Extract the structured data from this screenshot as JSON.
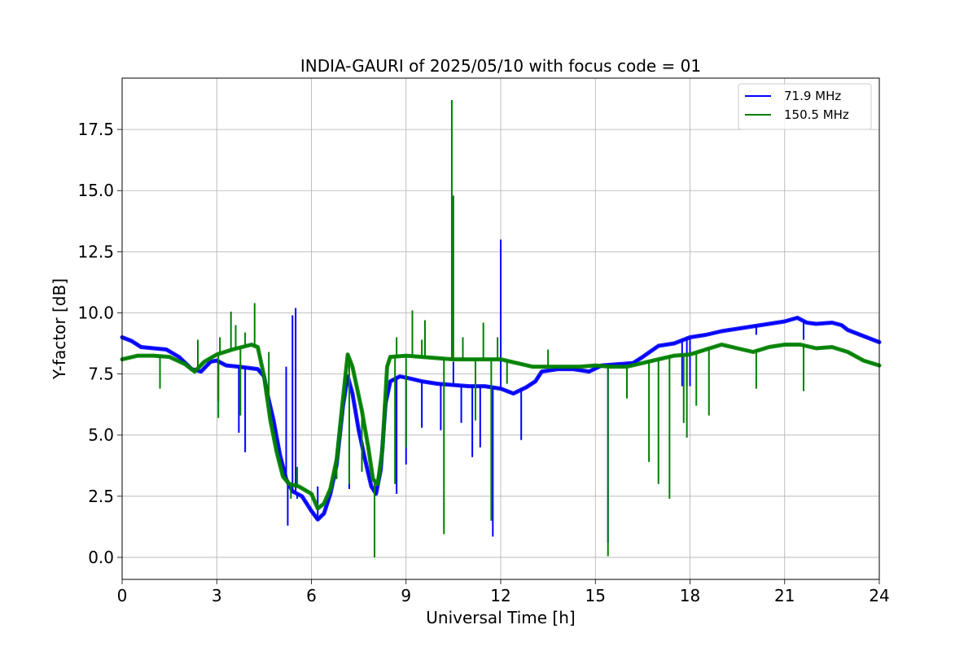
{
  "chart_data": {
    "type": "line",
    "title": "INDIA-GAURI of 2025/05/10 with focus code = 01",
    "xlabel": "Universal Time [h]",
    "ylabel": "Y-factor [dB]",
    "xlim": [
      0,
      24
    ],
    "ylim": [
      -0.9,
      19.6
    ],
    "xticks": [
      0,
      3,
      6,
      9,
      12,
      15,
      18,
      21,
      24
    ],
    "xtick_labels": [
      "0",
      "3",
      "6",
      "9",
      "12",
      "15",
      "18",
      "21",
      "24"
    ],
    "yticks": [
      0.0,
      2.5,
      5.0,
      7.5,
      10.0,
      12.5,
      15.0,
      17.5
    ],
    "ytick_labels": [
      "0.0",
      "2.5",
      "5.0",
      "7.5",
      "10.0",
      "12.5",
      "15.0",
      "17.5"
    ],
    "grid": true,
    "legend_position": "top-right",
    "series": [
      {
        "name": " 71.9 MHz",
        "color": "#0000ff",
        "points": [
          [
            0.0,
            9.0
          ],
          [
            0.3,
            8.85
          ],
          [
            0.6,
            8.6
          ],
          [
            1.0,
            8.55
          ],
          [
            1.4,
            8.5
          ],
          [
            1.8,
            8.2
          ],
          [
            2.2,
            7.7
          ],
          [
            2.5,
            7.6
          ],
          [
            2.8,
            8.0
          ],
          [
            3.0,
            8.05
          ],
          [
            3.3,
            7.85
          ],
          [
            3.7,
            7.8
          ],
          [
            4.0,
            7.75
          ],
          [
            4.3,
            7.7
          ],
          [
            4.5,
            7.4
          ],
          [
            4.6,
            6.7
          ],
          [
            4.8,
            5.6
          ],
          [
            5.0,
            4.2
          ],
          [
            5.2,
            3.2
          ],
          [
            5.4,
            2.7
          ],
          [
            5.7,
            2.5
          ],
          [
            6.0,
            1.9
          ],
          [
            6.2,
            1.55
          ],
          [
            6.4,
            1.8
          ],
          [
            6.6,
            2.6
          ],
          [
            6.8,
            3.8
          ],
          [
            7.0,
            6.2
          ],
          [
            7.15,
            7.4
          ],
          [
            7.3,
            6.7
          ],
          [
            7.5,
            5.2
          ],
          [
            7.7,
            4.0
          ],
          [
            7.9,
            2.9
          ],
          [
            8.05,
            2.6
          ],
          [
            8.2,
            3.6
          ],
          [
            8.35,
            6.3
          ],
          [
            8.5,
            7.2
          ],
          [
            8.8,
            7.4
          ],
          [
            9.0,
            7.35
          ],
          [
            9.5,
            7.2
          ],
          [
            10.0,
            7.1
          ],
          [
            10.5,
            7.05
          ],
          [
            11.0,
            7.0
          ],
          [
            11.5,
            7.0
          ],
          [
            12.0,
            6.9
          ],
          [
            12.4,
            6.7
          ],
          [
            12.8,
            6.95
          ],
          [
            13.1,
            7.2
          ],
          [
            13.3,
            7.6
          ],
          [
            13.8,
            7.7
          ],
          [
            14.3,
            7.7
          ],
          [
            14.8,
            7.6
          ],
          [
            15.2,
            7.85
          ],
          [
            15.7,
            7.9
          ],
          [
            16.2,
            7.95
          ],
          [
            16.5,
            8.2
          ],
          [
            17.0,
            8.65
          ],
          [
            17.5,
            8.75
          ],
          [
            18.0,
            9.0
          ],
          [
            18.5,
            9.1
          ],
          [
            19.0,
            9.25
          ],
          [
            19.5,
            9.35
          ],
          [
            20.0,
            9.45
          ],
          [
            20.5,
            9.55
          ],
          [
            21.0,
            9.65
          ],
          [
            21.4,
            9.8
          ],
          [
            21.7,
            9.6
          ],
          [
            22.0,
            9.55
          ],
          [
            22.5,
            9.6
          ],
          [
            22.8,
            9.5
          ],
          [
            23.0,
            9.3
          ],
          [
            23.5,
            9.05
          ],
          [
            24.0,
            8.8
          ]
        ],
        "spikes": [
          [
            3.05,
            6.4
          ],
          [
            3.35,
            7.9
          ],
          [
            3.7,
            5.1
          ],
          [
            3.9,
            4.3
          ],
          [
            5.2,
            7.8
          ],
          [
            5.25,
            1.3
          ],
          [
            5.4,
            9.9
          ],
          [
            5.5,
            10.2
          ],
          [
            5.55,
            2.4
          ],
          [
            6.2,
            2.9
          ],
          [
            7.2,
            2.8
          ],
          [
            7.6,
            3.6
          ],
          [
            8.7,
            2.6
          ],
          [
            9.0,
            3.8
          ],
          [
            9.5,
            5.3
          ],
          [
            10.1,
            5.2
          ],
          [
            10.5,
            8.0
          ],
          [
            10.75,
            5.5
          ],
          [
            11.1,
            4.1
          ],
          [
            11.35,
            4.5
          ],
          [
            11.6,
            6.9
          ],
          [
            11.75,
            0.85
          ],
          [
            12.0,
            13.0
          ],
          [
            12.65,
            4.8
          ],
          [
            15.4,
            0.6
          ],
          [
            17.75,
            7.0
          ],
          [
            17.9,
            7.0
          ],
          [
            18.0,
            7.0
          ],
          [
            20.1,
            9.1
          ],
          [
            21.6,
            8.9
          ]
        ]
      },
      {
        "name": "150.5 MHz",
        "color": "#008000",
        "points": [
          [
            0.0,
            8.1
          ],
          [
            0.5,
            8.25
          ],
          [
            1.0,
            8.25
          ],
          [
            1.5,
            8.2
          ],
          [
            2.0,
            7.9
          ],
          [
            2.3,
            7.6
          ],
          [
            2.6,
            8.0
          ],
          [
            3.0,
            8.3
          ],
          [
            3.5,
            8.5
          ],
          [
            3.8,
            8.6
          ],
          [
            4.1,
            8.7
          ],
          [
            4.3,
            8.6
          ],
          [
            4.5,
            7.4
          ],
          [
            4.7,
            5.6
          ],
          [
            4.9,
            4.3
          ],
          [
            5.1,
            3.3
          ],
          [
            5.3,
            3.0
          ],
          [
            5.6,
            2.9
          ],
          [
            6.0,
            2.6
          ],
          [
            6.2,
            2.0
          ],
          [
            6.4,
            2.2
          ],
          [
            6.6,
            2.8
          ],
          [
            6.8,
            4.0
          ],
          [
            7.0,
            6.5
          ],
          [
            7.15,
            8.3
          ],
          [
            7.3,
            7.8
          ],
          [
            7.6,
            6.0
          ],
          [
            7.8,
            4.5
          ],
          [
            7.95,
            3.2
          ],
          [
            8.1,
            3.0
          ],
          [
            8.25,
            4.4
          ],
          [
            8.4,
            7.8
          ],
          [
            8.5,
            8.2
          ],
          [
            9.0,
            8.25
          ],
          [
            9.5,
            8.2
          ],
          [
            10.0,
            8.15
          ],
          [
            10.5,
            8.1
          ],
          [
            11.0,
            8.1
          ],
          [
            11.5,
            8.1
          ],
          [
            12.0,
            8.1
          ],
          [
            12.5,
            7.95
          ],
          [
            13.0,
            7.8
          ],
          [
            13.5,
            7.8
          ],
          [
            14.0,
            7.8
          ],
          [
            14.5,
            7.8
          ],
          [
            15.0,
            7.85
          ],
          [
            15.5,
            7.8
          ],
          [
            16.0,
            7.8
          ],
          [
            16.5,
            7.95
          ],
          [
            17.0,
            8.1
          ],
          [
            17.5,
            8.25
          ],
          [
            18.0,
            8.3
          ],
          [
            18.5,
            8.5
          ],
          [
            19.0,
            8.7
          ],
          [
            19.5,
            8.55
          ],
          [
            20.0,
            8.4
          ],
          [
            20.5,
            8.6
          ],
          [
            21.0,
            8.7
          ],
          [
            21.5,
            8.7
          ],
          [
            22.0,
            8.55
          ],
          [
            22.5,
            8.6
          ],
          [
            23.0,
            8.4
          ],
          [
            23.5,
            8.05
          ],
          [
            24.0,
            7.85
          ]
        ],
        "spikes": [
          [
            1.2,
            6.9
          ],
          [
            2.4,
            8.9
          ],
          [
            3.05,
            5.7
          ],
          [
            3.1,
            9.0
          ],
          [
            3.45,
            10.05
          ],
          [
            3.6,
            9.5
          ],
          [
            3.75,
            5.8
          ],
          [
            3.9,
            9.2
          ],
          [
            4.2,
            10.4
          ],
          [
            4.65,
            8.4
          ],
          [
            5.35,
            2.4
          ],
          [
            5.55,
            3.7
          ],
          [
            6.8,
            3.2
          ],
          [
            7.2,
            3.0
          ],
          [
            7.6,
            3.5
          ],
          [
            8.0,
            0.0
          ],
          [
            8.65,
            3.0
          ],
          [
            8.7,
            9.0
          ],
          [
            9.0,
            4.5
          ],
          [
            9.2,
            10.1
          ],
          [
            9.5,
            8.9
          ],
          [
            9.6,
            9.7
          ],
          [
            10.2,
            0.95
          ],
          [
            10.45,
            18.7
          ],
          [
            10.5,
            14.8
          ],
          [
            10.8,
            9.0
          ],
          [
            11.2,
            5.6
          ],
          [
            11.45,
            9.6
          ],
          [
            11.7,
            1.5
          ],
          [
            11.9,
            9.0
          ],
          [
            12.2,
            7.1
          ],
          [
            13.5,
            8.5
          ],
          [
            15.4,
            0.05
          ],
          [
            16.0,
            6.5
          ],
          [
            16.7,
            3.9
          ],
          [
            17.0,
            3.0
          ],
          [
            17.35,
            2.4
          ],
          [
            17.8,
            5.5
          ],
          [
            17.9,
            4.9
          ],
          [
            18.2,
            6.2
          ],
          [
            18.6,
            5.8
          ],
          [
            20.1,
            6.9
          ],
          [
            21.6,
            6.8
          ]
        ]
      }
    ]
  }
}
